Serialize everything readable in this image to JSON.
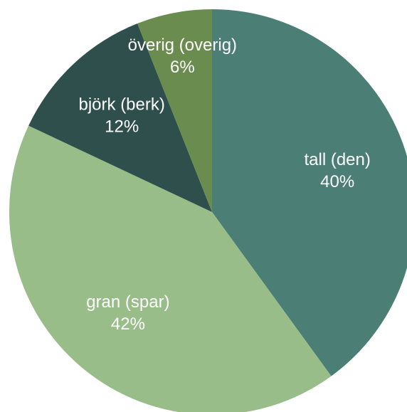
{
  "chart_data": {
    "type": "pie",
    "categories": [
      "tall (den)",
      "gran (spar)",
      "björk (berk)",
      "överig (overig)"
    ],
    "values": [
      40,
      42,
      12,
      6
    ],
    "value_labels": [
      "40%",
      "42%",
      "12%",
      "6%"
    ],
    "colors": [
      "#4b7f75",
      "#98bd89",
      "#2e4f4b",
      "#6a8c4f"
    ]
  }
}
